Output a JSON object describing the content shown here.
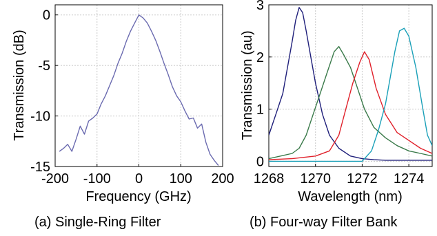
{
  "chart_data": [
    {
      "type": "line",
      "caption": "(a) Single-Ring Filter",
      "xlabel": "Frequency (GHz)",
      "ylabel": "Transmission (dB)",
      "xlim": [
        -200,
        200
      ],
      "ylim": [
        -15,
        1
      ],
      "x_ticks": [
        -200,
        -100,
        0,
        100,
        200
      ],
      "x_tick_labels": [
        "-200",
        "-100",
        "0",
        "100",
        "200"
      ],
      "y_ticks": [
        0,
        -5,
        -10,
        -15
      ],
      "y_tick_labels": [
        "0",
        "-5",
        "-10",
        "-15"
      ],
      "grid": true,
      "series": [
        {
          "color": "#6b6bb0",
          "x": [
            -190,
            -180,
            -170,
            -160,
            -150,
            -140,
            -130,
            -120,
            -110,
            -100,
            -90,
            -80,
            -70,
            -60,
            -50,
            -40,
            -30,
            -20,
            -10,
            0,
            10,
            20,
            30,
            40,
            50,
            60,
            70,
            80,
            90,
            100,
            110,
            120,
            130,
            140,
            150,
            160,
            170,
            180,
            190
          ],
          "y": [
            -13.5,
            -13.2,
            -12.8,
            -13.5,
            -12.3,
            -11.0,
            -11.8,
            -10.5,
            -10.2,
            -9.8,
            -8.8,
            -8.0,
            -7.0,
            -6.0,
            -4.8,
            -3.8,
            -2.6,
            -1.6,
            -0.8,
            0.0,
            -0.3,
            -0.8,
            -1.6,
            -2.5,
            -3.6,
            -4.8,
            -5.9,
            -7.1,
            -8.0,
            -8.6,
            -9.5,
            -10.3,
            -10.2,
            -11.2,
            -10.8,
            -12.6,
            -13.8,
            -14.4,
            -14.9
          ]
        }
      ]
    },
    {
      "type": "line",
      "caption": "(b) Four-way Filter Bank",
      "xlabel": "Wavelength (nm)",
      "ylabel": "Transmission (au)",
      "xlim": [
        1268,
        1275
      ],
      "ylim": [
        -0.1,
        3
      ],
      "x_ticks": [
        1268,
        1270,
        1272,
        1274
      ],
      "x_tick_labels": [
        "1268",
        "1270",
        "1272",
        "1274"
      ],
      "y_ticks": [
        0,
        1,
        2,
        3
      ],
      "y_tick_labels": [
        "0",
        "1",
        "2",
        "3"
      ],
      "grid": true,
      "series": [
        {
          "color": "#1f1f7a",
          "x": [
            1268.0,
            1268.3,
            1268.6,
            1268.8,
            1269.0,
            1269.15,
            1269.3,
            1269.45,
            1269.6,
            1269.8,
            1270.0,
            1270.3,
            1270.6,
            1271.0,
            1271.5,
            1272.0,
            1272.5,
            1273.0,
            1274.0,
            1275.0
          ],
          "y": [
            0.5,
            0.9,
            1.3,
            1.8,
            2.3,
            2.7,
            2.95,
            2.85,
            2.5,
            2.0,
            1.5,
            0.9,
            0.5,
            0.25,
            0.1,
            0.05,
            0.03,
            0.02,
            0.02,
            0.02
          ]
        },
        {
          "color": "#3a7a4a",
          "x": [
            1268.0,
            1268.5,
            1269.0,
            1269.3,
            1269.6,
            1269.9,
            1270.2,
            1270.5,
            1270.8,
            1271.0,
            1271.2,
            1271.5,
            1271.8,
            1272.1,
            1272.5,
            1273.0,
            1273.5,
            1274.0,
            1274.5,
            1275.0
          ],
          "y": [
            0.05,
            0.1,
            0.15,
            0.25,
            0.5,
            0.9,
            1.3,
            1.7,
            2.1,
            2.2,
            2.05,
            1.8,
            1.4,
            1.0,
            0.65,
            0.45,
            0.3,
            0.2,
            0.15,
            0.1
          ]
        },
        {
          "color": "#e0202a",
          "x": [
            1268.0,
            1269.0,
            1270.0,
            1270.6,
            1271.0,
            1271.3,
            1271.6,
            1271.9,
            1272.1,
            1272.3,
            1272.6,
            1273.0,
            1273.5,
            1274.0,
            1274.5,
            1275.0
          ],
          "y": [
            0.03,
            0.05,
            0.1,
            0.2,
            0.5,
            1.0,
            1.5,
            1.9,
            2.1,
            1.95,
            1.4,
            0.9,
            0.55,
            0.4,
            0.25,
            0.15
          ]
        },
        {
          "color": "#1aa0b8",
          "x": [
            1268.0,
            1270.0,
            1272.0,
            1272.4,
            1272.7,
            1273.0,
            1273.2,
            1273.4,
            1273.6,
            1273.8,
            1274.0,
            1274.3,
            1274.6,
            1274.8,
            1275.0
          ],
          "y": [
            0.0,
            0.0,
            0.0,
            0.2,
            0.6,
            1.1,
            1.6,
            2.1,
            2.5,
            2.55,
            2.4,
            1.8,
            1.0,
            0.5,
            0.3
          ]
        }
      ]
    }
  ]
}
